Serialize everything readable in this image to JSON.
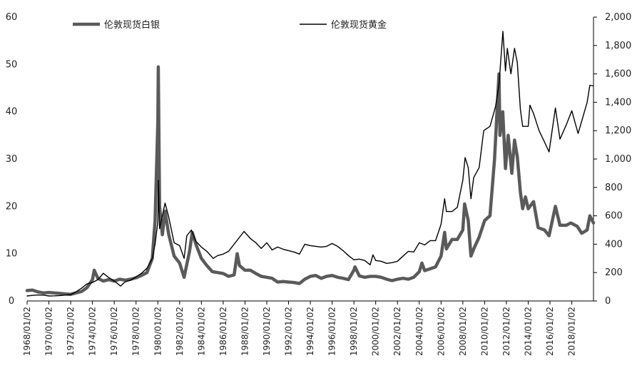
{
  "chart_data": {
    "type": "line",
    "title": "",
    "x_range": [
      "1968/01/02",
      "2019/12/31"
    ],
    "x_tick_labels": [
      "1968/01/02",
      "1970/01/02",
      "1972/01/02",
      "1974/01/02",
      "1976/01/02",
      "1978/01/02",
      "1980/01/02",
      "1982/01/02",
      "1984/01/02",
      "1986/01/02",
      "1988/01/02",
      "1990/01/02",
      "1992/01/02",
      "1994/01/02",
      "1996/01/02",
      "1998/01/02",
      "2000/01/02",
      "2002/01/02",
      "2004/01/02",
      "2006/01/02",
      "2008/01/02",
      "2010/01/02",
      "2012/01/02",
      "2014/01/02",
      "2016/01/02",
      "2018/01/02"
    ],
    "y_left": {
      "ylim": [
        0,
        60
      ],
      "ticks": [
        "0",
        "10",
        "20",
        "30",
        "40",
        "50",
        "60"
      ]
    },
    "y_right": {
      "ylim": [
        0,
        2000
      ],
      "ticks": [
        "0",
        "200",
        "400",
        "600",
        "800",
        "1,000",
        "1,200",
        "1,400",
        "1,600",
        "1,800",
        "2,000"
      ]
    },
    "grid": false,
    "legend_placement": "top",
    "series": [
      {
        "name": "伦敦现货白银",
        "axis": "left",
        "color": "#5a5a5a",
        "points": [
          [
            "1968/01/02",
            2.2
          ],
          [
            "1968/07/01",
            2.3
          ],
          [
            "1969/01/02",
            1.9
          ],
          [
            "1969/07/01",
            1.7
          ],
          [
            "1970/01/02",
            1.8
          ],
          [
            "1970/07/01",
            1.7
          ],
          [
            "1971/01/02",
            1.6
          ],
          [
            "1971/07/01",
            1.5
          ],
          [
            "1972/01/02",
            1.4
          ],
          [
            "1972/07/01",
            1.7
          ],
          [
            "1973/01/02",
            2.0
          ],
          [
            "1973/07/01",
            2.8
          ],
          [
            "1974/01/02",
            4.5
          ],
          [
            "1974/03/01",
            6.5
          ],
          [
            "1974/07/01",
            4.8
          ],
          [
            "1975/01/02",
            4.2
          ],
          [
            "1975/07/01",
            4.5
          ],
          [
            "1976/01/02",
            4.2
          ],
          [
            "1976/07/01",
            4.6
          ],
          [
            "1977/01/02",
            4.4
          ],
          [
            "1977/07/01",
            4.6
          ],
          [
            "1978/01/02",
            4.9
          ],
          [
            "1978/07/01",
            5.4
          ],
          [
            "1979/01/02",
            6.0
          ],
          [
            "1979/07/01",
            9.0
          ],
          [
            "1979/10/01",
            17.0
          ],
          [
            "1980/01/02",
            38.0
          ],
          [
            "1980/01/18",
            49.5
          ],
          [
            "1980/03/01",
            20.0
          ],
          [
            "1980/06/01",
            14.0
          ],
          [
            "1980/09/01",
            19.0
          ],
          [
            "1981/01/02",
            14.0
          ],
          [
            "1981/07/01",
            9.5
          ],
          [
            "1982/01/02",
            8.0
          ],
          [
            "1982/06/01",
            5.0
          ],
          [
            "1982/12/01",
            10.5
          ],
          [
            "1983/03/01",
            14.5
          ],
          [
            "1983/07/01",
            12.0
          ],
          [
            "1984/01/02",
            9.0
          ],
          [
            "1984/07/01",
            7.5
          ],
          [
            "1985/01/02",
            6.2
          ],
          [
            "1985/07/01",
            6.0
          ],
          [
            "1986/01/02",
            5.8
          ],
          [
            "1986/07/01",
            5.2
          ],
          [
            "1987/01/02",
            5.5
          ],
          [
            "1987/04/15",
            10.0
          ],
          [
            "1987/07/01",
            7.5
          ],
          [
            "1988/01/02",
            6.5
          ],
          [
            "1988/07/01",
            6.5
          ],
          [
            "1989/01/02",
            5.8
          ],
          [
            "1989/07/01",
            5.2
          ],
          [
            "1990/01/02",
            5.0
          ],
          [
            "1990/07/01",
            4.8
          ],
          [
            "1991/01/02",
            4.0
          ],
          [
            "1991/07/01",
            4.1
          ],
          [
            "1992/01/02",
            4.0
          ],
          [
            "1992/07/01",
            3.9
          ],
          [
            "1993/01/02",
            3.7
          ],
          [
            "1993/07/01",
            4.6
          ],
          [
            "1994/01/02",
            5.2
          ],
          [
            "1994/07/01",
            5.4
          ],
          [
            "1995/01/02",
            4.8
          ],
          [
            "1995/07/01",
            5.2
          ],
          [
            "1996/01/02",
            5.4
          ],
          [
            "1996/07/01",
            5.0
          ],
          [
            "1997/01/02",
            4.8
          ],
          [
            "1997/07/01",
            4.5
          ],
          [
            "1998/01/02",
            6.5
          ],
          [
            "1998/02/05",
            7.2
          ],
          [
            "1998/07/01",
            5.3
          ],
          [
            "1999/01/02",
            5.0
          ],
          [
            "1999/07/01",
            5.2
          ],
          [
            "2000/01/02",
            5.2
          ],
          [
            "2000/07/01",
            5.0
          ],
          [
            "2001/01/02",
            4.6
          ],
          [
            "2001/07/01",
            4.3
          ],
          [
            "2002/01/02",
            4.6
          ],
          [
            "2002/07/01",
            4.8
          ],
          [
            "2003/01/02",
            4.6
          ],
          [
            "2003/07/01",
            5.0
          ],
          [
            "2004/01/02",
            6.2
          ],
          [
            "2004/04/01",
            8.0
          ],
          [
            "2004/07/01",
            6.4
          ],
          [
            "2005/01/02",
            6.8
          ],
          [
            "2005/07/01",
            7.2
          ],
          [
            "2006/01/02",
            9.5
          ],
          [
            "2006/05/01",
            14.5
          ],
          [
            "2006/07/01",
            11.0
          ],
          [
            "2007/01/02",
            13.0
          ],
          [
            "2007/07/01",
            13.0
          ],
          [
            "2008/01/02",
            15.0
          ],
          [
            "2008/03/01",
            20.5
          ],
          [
            "2008/07/01",
            17.0
          ],
          [
            "2008/10/01",
            9.5
          ],
          [
            "2009/01/02",
            11.0
          ],
          [
            "2009/07/01",
            13.5
          ],
          [
            "2010/01/02",
            17.0
          ],
          [
            "2010/07/01",
            18.0
          ],
          [
            "2010/12/01",
            30.0
          ],
          [
            "2011/04/28",
            48.0
          ],
          [
            "2011/06/01",
            35.0
          ],
          [
            "2011/09/01",
            40.0
          ],
          [
            "2011/12/01",
            28.0
          ],
          [
            "2012/03/01",
            35.0
          ],
          [
            "2012/07/01",
            27.0
          ],
          [
            "2012/10/01",
            34.0
          ],
          [
            "2013/01/02",
            30.5
          ],
          [
            "2013/04/15",
            23.0
          ],
          [
            "2013/07/01",
            19.5
          ],
          [
            "2013/10/01",
            22.0
          ],
          [
            "2014/01/02",
            19.5
          ],
          [
            "2014/07/01",
            21.0
          ],
          [
            "2014/12/01",
            15.5
          ],
          [
            "2015/07/01",
            15.0
          ],
          [
            "2015/12/01",
            13.8
          ],
          [
            "2016/07/01",
            20.0
          ],
          [
            "2016/12/01",
            16.0
          ],
          [
            "2017/07/01",
            16.0
          ],
          [
            "2017/12/01",
            16.5
          ],
          [
            "2018/07/01",
            15.8
          ],
          [
            "2018/12/01",
            14.3
          ],
          [
            "2019/06/01",
            15.0
          ],
          [
            "2019/09/01",
            18.0
          ],
          [
            "2019/12/31",
            16.5
          ]
        ]
      },
      {
        "name": "伦敦现货黄金",
        "axis": "right",
        "color": "#000000",
        "points": [
          [
            "1968/01/02",
            35
          ],
          [
            "1968/07/01",
            39
          ],
          [
            "1969/01/02",
            42
          ],
          [
            "1969/07/01",
            41
          ],
          [
            "1970/01/02",
            35
          ],
          [
            "1970/07/01",
            36
          ],
          [
            "1971/01/02",
            38
          ],
          [
            "1971/07/01",
            41
          ],
          [
            "1972/01/02",
            45
          ],
          [
            "1972/07/01",
            65
          ],
          [
            "1973/01/02",
            90
          ],
          [
            "1973/07/01",
            120
          ],
          [
            "1974/01/02",
            130
          ],
          [
            "1974/07/01",
            150
          ],
          [
            "1974/12/30",
            195
          ],
          [
            "1975/07/01",
            165
          ],
          [
            "1976/01/02",
            140
          ],
          [
            "1976/08/01",
            105
          ],
          [
            "1977/01/02",
            135
          ],
          [
            "1977/07/01",
            145
          ],
          [
            "1978/01/02",
            170
          ],
          [
            "1978/07/01",
            195
          ],
          [
            "1979/01/02",
            230
          ],
          [
            "1979/07/01",
            300
          ],
          [
            "1979/10/01",
            400
          ],
          [
            "1980/01/02",
            560
          ],
          [
            "1980/01/21",
            850
          ],
          [
            "1980/03/01",
            510
          ],
          [
            "1980/06/01",
            600
          ],
          [
            "1980/09/01",
            690
          ],
          [
            "1981/01/02",
            590
          ],
          [
            "1981/07/01",
            410
          ],
          [
            "1982/01/02",
            390
          ],
          [
            "1982/06/01",
            300
          ],
          [
            "1982/09/01",
            460
          ],
          [
            "1983/02/01",
            500
          ],
          [
            "1983/07/01",
            420
          ],
          [
            "1984/01/02",
            380
          ],
          [
            "1984/07/01",
            350
          ],
          [
            "1985/02/01",
            300
          ],
          [
            "1985/07/01",
            320
          ],
          [
            "1986/01/02",
            330
          ],
          [
            "1986/07/01",
            350
          ],
          [
            "1987/01/02",
            400
          ],
          [
            "1987/12/01",
            490
          ],
          [
            "1988/07/01",
            440
          ],
          [
            "1989/01/02",
            410
          ],
          [
            "1989/07/01",
            370
          ],
          [
            "1990/01/02",
            410
          ],
          [
            "1990/07/01",
            360
          ],
          [
            "1991/01/02",
            380
          ],
          [
            "1991/07/01",
            365
          ],
          [
            "1992/01/02",
            355
          ],
          [
            "1992/07/01",
            345
          ],
          [
            "1993/01/02",
            330
          ],
          [
            "1993/07/01",
            400
          ],
          [
            "1994/01/02",
            390
          ],
          [
            "1994/07/01",
            385
          ],
          [
            "1995/01/02",
            380
          ],
          [
            "1995/07/01",
            385
          ],
          [
            "1996/01/02",
            405
          ],
          [
            "1996/07/01",
            385
          ],
          [
            "1997/01/02",
            355
          ],
          [
            "1997/07/01",
            320
          ],
          [
            "1998/01/02",
            290
          ],
          [
            "1998/07/01",
            295
          ],
          [
            "1999/01/02",
            285
          ],
          [
            "1999/07/01",
            255
          ],
          [
            "1999/10/01",
            325
          ],
          [
            "2000/01/02",
            285
          ],
          [
            "2000/07/01",
            280
          ],
          [
            "2001/01/02",
            265
          ],
          [
            "2001/07/01",
            270
          ],
          [
            "2002/01/02",
            280
          ],
          [
            "2002/07/01",
            315
          ],
          [
            "2003/01/02",
            350
          ],
          [
            "2003/07/01",
            345
          ],
          [
            "2004/01/02",
            410
          ],
          [
            "2004/07/01",
            395
          ],
          [
            "2005/01/02",
            425
          ],
          [
            "2005/07/01",
            425
          ],
          [
            "2006/01/02",
            540
          ],
          [
            "2006/05/01",
            720
          ],
          [
            "2006/07/01",
            630
          ],
          [
            "2007/01/02",
            630
          ],
          [
            "2007/07/01",
            660
          ],
          [
            "2008/01/02",
            850
          ],
          [
            "2008/03/17",
            1010
          ],
          [
            "2008/07/01",
            940
          ],
          [
            "2008/10/01",
            720
          ],
          [
            "2009/01/02",
            870
          ],
          [
            "2009/07/01",
            940
          ],
          [
            "2009/12/01",
            1200
          ],
          [
            "2010/07/01",
            1230
          ],
          [
            "2011/01/02",
            1370
          ],
          [
            "2011/05/01",
            1530
          ],
          [
            "2011/09/06",
            1900
          ],
          [
            "2011/12/01",
            1620
          ],
          [
            "2012/02/01",
            1780
          ],
          [
            "2012/06/01",
            1600
          ],
          [
            "2012/10/01",
            1780
          ],
          [
            "2013/01/02",
            1680
          ],
          [
            "2013/04/15",
            1350
          ],
          [
            "2013/07/01",
            1230
          ],
          [
            "2014/01/02",
            1230
          ],
          [
            "2014/03/01",
            1380
          ],
          [
            "2014/07/01",
            1320
          ],
          [
            "2015/01/02",
            1200
          ],
          [
            "2015/07/01",
            1120
          ],
          [
            "2015/12/01",
            1050
          ],
          [
            "2016/07/01",
            1360
          ],
          [
            "2016/12/01",
            1140
          ],
          [
            "2017/07/01",
            1240
          ],
          [
            "2018/01/02",
            1340
          ],
          [
            "2018/08/01",
            1180
          ],
          [
            "2019/01/02",
            1290
          ],
          [
            "2019/06/01",
            1400
          ],
          [
            "2019/09/01",
            1520
          ],
          [
            "2019/12/31",
            1515
          ]
        ]
      }
    ]
  }
}
